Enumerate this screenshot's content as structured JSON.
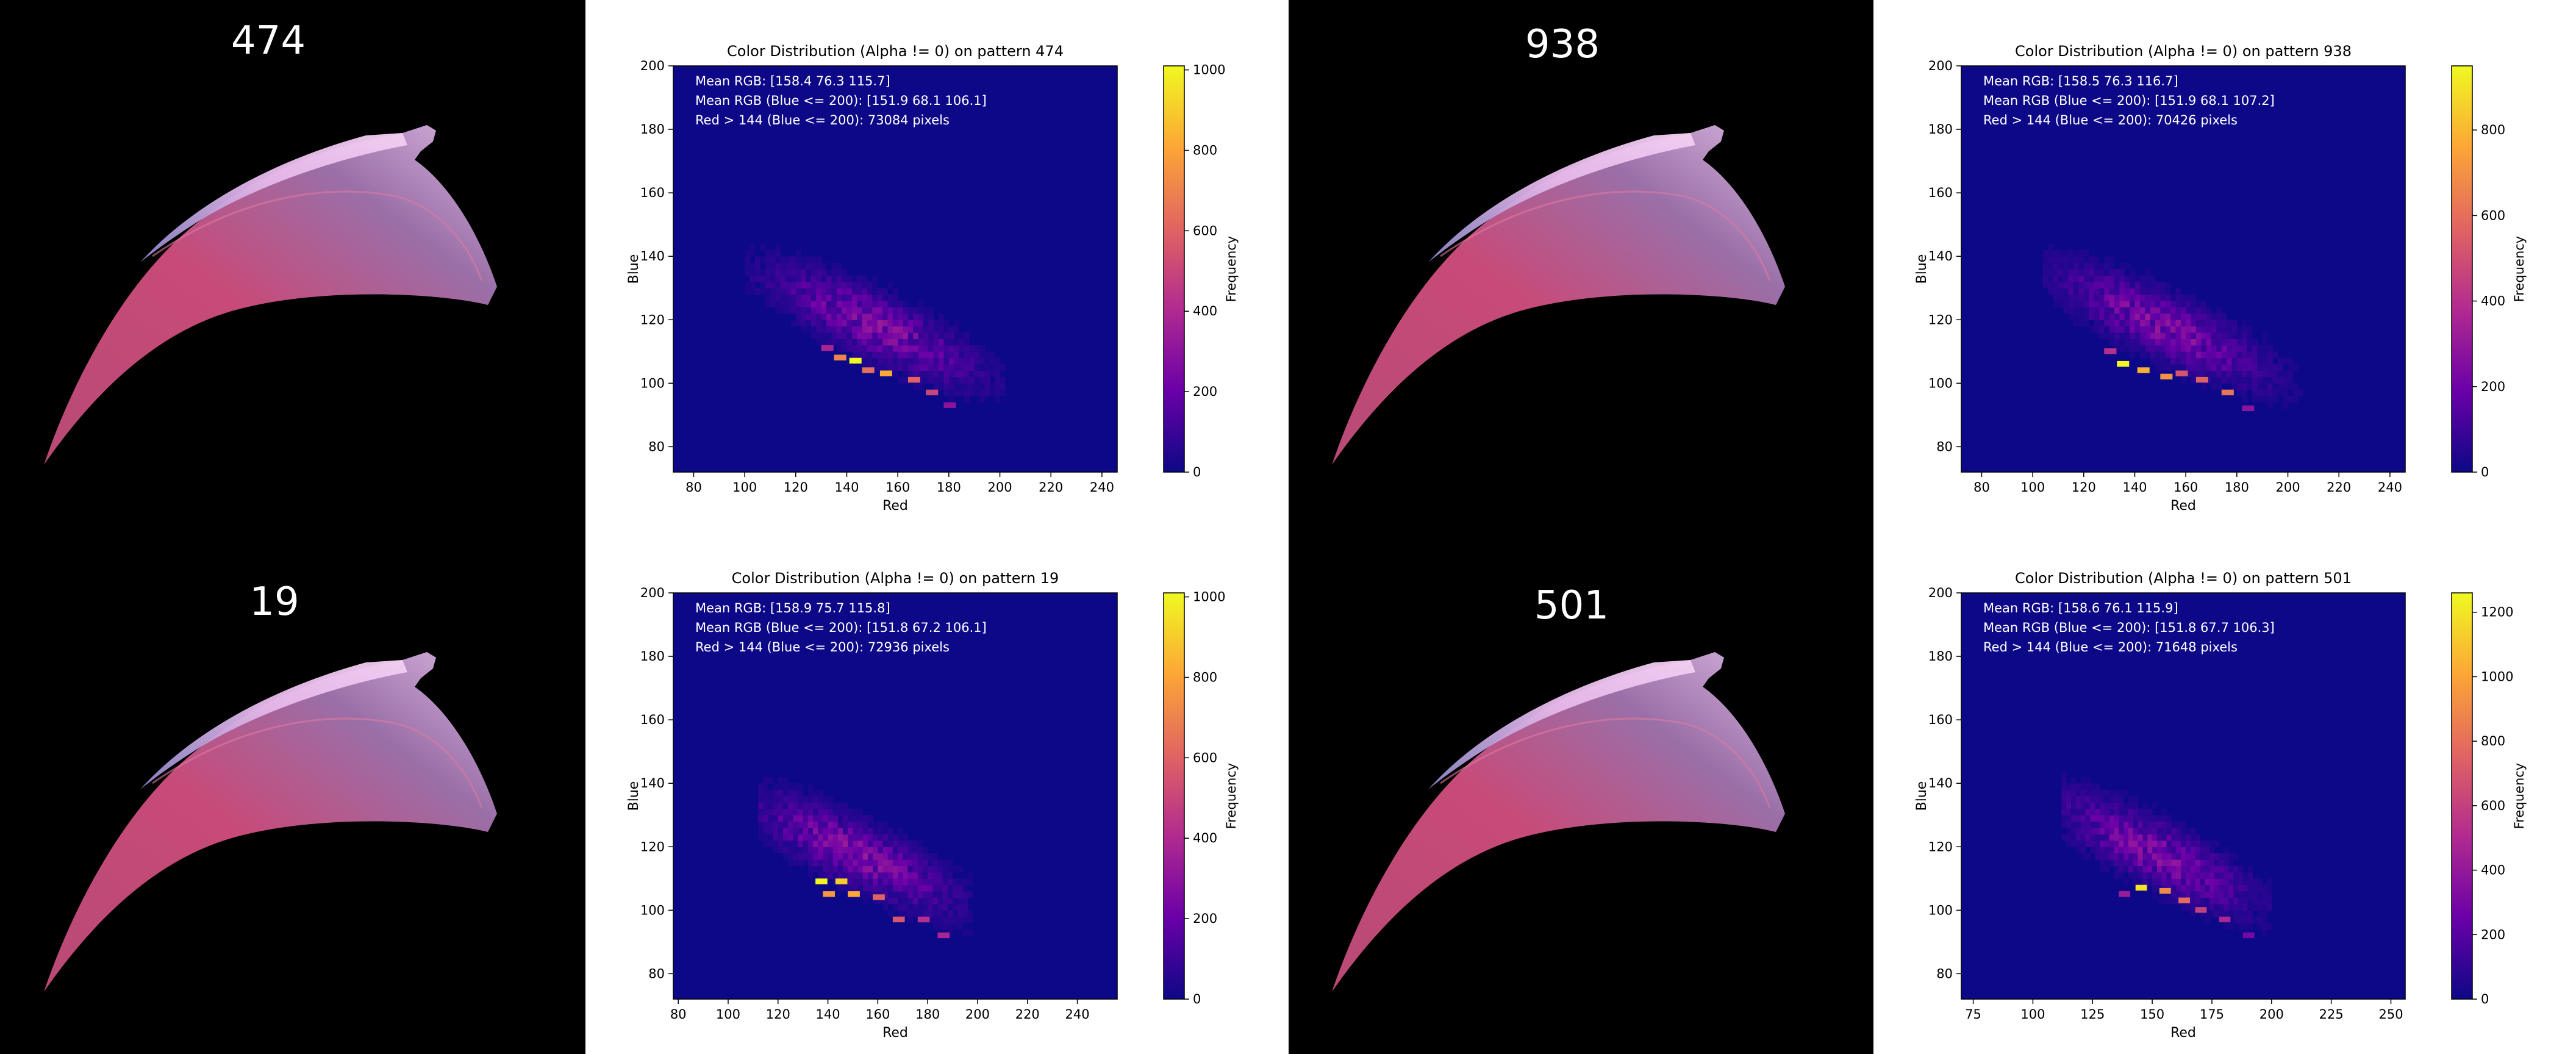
{
  "photos": [
    {
      "label": "474"
    },
    {
      "label": "938"
    },
    {
      "label": "19"
    },
    {
      "label": "501"
    }
  ],
  "colors": {
    "plot_background": "#0d0887",
    "colormap": [
      "#0d0887",
      "#6a00a8",
      "#b12a90",
      "#e16462",
      "#fca636",
      "#f0f921"
    ],
    "photo_background": "#000000",
    "specimen_fill": "#c84a78",
    "specimen_highlight": "#f3d0f3",
    "annotation_text": "#ffffff"
  },
  "chart_data": [
    {
      "type": "heatmap",
      "title": "Color Distribution (Alpha != 0) on pattern 474",
      "xlabel": "Red",
      "ylabel": "Blue",
      "xlim": [
        72,
        246
      ],
      "ylim": [
        72,
        200
      ],
      "xticks": [
        80,
        100,
        120,
        140,
        160,
        180,
        200,
        220,
        240
      ],
      "yticks": [
        80,
        100,
        120,
        140,
        160,
        180,
        200
      ],
      "colorbar": {
        "label": "Frequency",
        "min": 0,
        "max": 1010,
        "ticks": [
          0,
          200,
          400,
          600,
          800,
          1000
        ]
      },
      "annotations": [
        "Mean RGB: [158.4  76.3 115.7]",
        "Mean RGB (Blue <= 200): [151.9  68.1 106.1]",
        "Red > 144 (Blue <= 200): 73084 pixels"
      ],
      "hotspots": [
        {
          "red": 143,
          "blue": 107,
          "value": 1000
        },
        {
          "red": 155,
          "blue": 103,
          "value": 820
        },
        {
          "red": 137,
          "blue": 108,
          "value": 700
        },
        {
          "red": 166,
          "blue": 101,
          "value": 600
        },
        {
          "red": 173,
          "blue": 97,
          "value": 500
        },
        {
          "red": 148,
          "blue": 104,
          "value": 640
        },
        {
          "red": 132,
          "blue": 111,
          "value": 380
        },
        {
          "red": 180,
          "blue": 93,
          "value": 300
        }
      ],
      "spread": {
        "red_min": 100,
        "red_max": 200,
        "blue_min": 82,
        "blue_max": 148
      }
    },
    {
      "type": "heatmap",
      "title": "Color Distribution (Alpha != 0) on pattern 938",
      "xlabel": "Red",
      "ylabel": "Blue",
      "xlim": [
        72,
        246
      ],
      "ylim": [
        72,
        200
      ],
      "xticks": [
        80,
        100,
        120,
        140,
        160,
        180,
        200,
        220,
        240
      ],
      "yticks": [
        80,
        100,
        120,
        140,
        160,
        180,
        200
      ],
      "colorbar": {
        "label": "Frequency",
        "min": 0,
        "max": 950,
        "ticks": [
          0,
          200,
          400,
          600,
          800
        ]
      },
      "annotations": [
        "Mean RGB: [158.5  76.3 116.7]",
        "Mean RGB (Blue <= 200): [151.9  68.1 107.2]",
        "Red > 144 (Blue <= 200): 70426 pixels"
      ],
      "hotspots": [
        {
          "red": 135,
          "blue": 106,
          "value": 950
        },
        {
          "red": 143,
          "blue": 104,
          "value": 780
        },
        {
          "red": 152,
          "blue": 102,
          "value": 700
        },
        {
          "red": 166,
          "blue": 101,
          "value": 560
        },
        {
          "red": 176,
          "blue": 97,
          "value": 620
        },
        {
          "red": 158,
          "blue": 103,
          "value": 520
        },
        {
          "red": 130,
          "blue": 110,
          "value": 400
        },
        {
          "red": 184,
          "blue": 92,
          "value": 280
        }
      ],
      "spread": {
        "red_min": 104,
        "red_max": 204,
        "blue_min": 82,
        "blue_max": 150
      }
    },
    {
      "type": "heatmap",
      "title": "Color Distribution (Alpha != 0) on pattern 19",
      "xlabel": "Red",
      "ylabel": "Blue",
      "xlim": [
        78,
        256
      ],
      "ylim": [
        72,
        200
      ],
      "xticks": [
        80,
        100,
        120,
        140,
        160,
        180,
        200,
        220,
        240
      ],
      "yticks": [
        80,
        100,
        120,
        140,
        160,
        180,
        200
      ],
      "colorbar": {
        "label": "Frequency",
        "min": 0,
        "max": 1010,
        "ticks": [
          0,
          200,
          400,
          600,
          800,
          1000
        ]
      },
      "annotations": [
        "Mean RGB: [158.9  75.7 115.8]",
        "Mean RGB (Blue <= 200): [151.8  67.2 106.1]",
        "Red > 144 (Blue <= 200): 72936 pixels"
      ],
      "hotspots": [
        {
          "red": 137,
          "blue": 109,
          "value": 1000
        },
        {
          "red": 145,
          "blue": 109,
          "value": 900
        },
        {
          "red": 150,
          "blue": 105,
          "value": 820
        },
        {
          "red": 140,
          "blue": 105,
          "value": 760
        },
        {
          "red": 160,
          "blue": 104,
          "value": 600
        },
        {
          "red": 168,
          "blue": 97,
          "value": 560
        },
        {
          "red": 178,
          "blue": 97,
          "value": 420
        },
        {
          "red": 186,
          "blue": 92,
          "value": 380
        }
      ],
      "spread": {
        "red_min": 112,
        "red_max": 196,
        "blue_min": 84,
        "blue_max": 140
      }
    },
    {
      "type": "heatmap",
      "title": "Color Distribution (Alpha != 0) on pattern 501",
      "xlabel": "Red",
      "ylabel": "Blue",
      "xlim": [
        70,
        256
      ],
      "ylim": [
        72,
        200
      ],
      "xticks": [
        75,
        100,
        125,
        150,
        175,
        200,
        225,
        250
      ],
      "yticks": [
        80,
        100,
        120,
        140,
        160,
        180,
        200
      ],
      "colorbar": {
        "label": "Frequency",
        "min": 0,
        "max": 1260,
        "ticks": [
          0,
          200,
          400,
          600,
          800,
          1000,
          1200
        ]
      },
      "annotations": [
        "Mean RGB: [158.6  76.1 115.9]",
        "Mean RGB (Blue <= 200): [151.8  67.7 106.3]",
        "Red > 144 (Blue <= 200): 71648 pixels"
      ],
      "hotspots": [
        {
          "red": 145,
          "blue": 107,
          "value": 1200
        },
        {
          "red": 155,
          "blue": 106,
          "value": 900
        },
        {
          "red": 163,
          "blue": 103,
          "value": 780
        },
        {
          "red": 170,
          "blue": 100,
          "value": 600
        },
        {
          "red": 180,
          "blue": 97,
          "value": 480
        },
        {
          "red": 138,
          "blue": 105,
          "value": 420
        },
        {
          "red": 190,
          "blue": 92,
          "value": 300
        }
      ],
      "spread": {
        "red_min": 112,
        "red_max": 198,
        "blue_min": 80,
        "blue_max": 142
      }
    }
  ]
}
